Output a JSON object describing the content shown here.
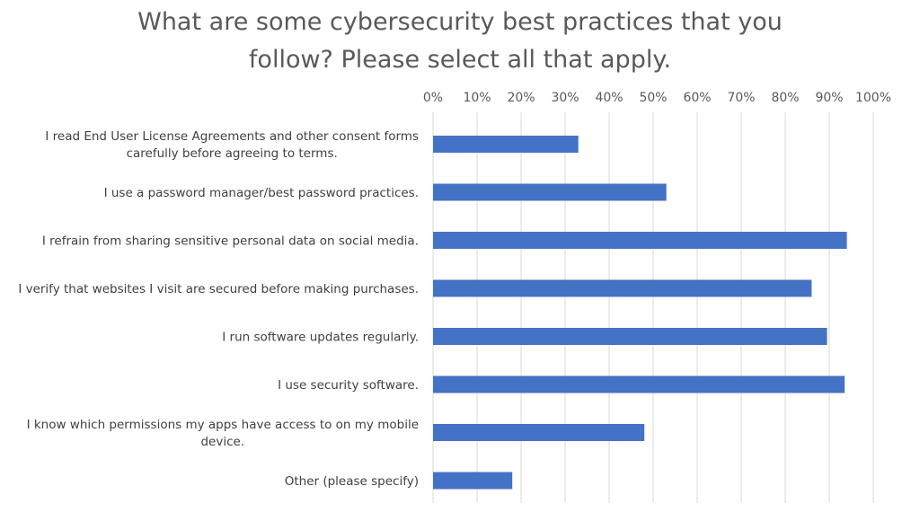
{
  "chart_data": {
    "type": "bar",
    "orientation": "horizontal",
    "title_lines": [
      "What are some cybersecurity best practices that you",
      "follow? Please select all that apply."
    ],
    "categories": [
      [
        "I read End User License Agreements and other consent forms",
        "carefully before agreeing to terms."
      ],
      [
        "I use a password manager/best password practices."
      ],
      [
        "I refrain from sharing sensitive personal data on social media."
      ],
      [
        "I verify that websites I visit are secured before making purchases."
      ],
      [
        "I run software updates regularly."
      ],
      [
        "I use security software."
      ],
      [
        "I know which permissions my apps have access to on my mobile",
        "device."
      ],
      [
        "Other (please specify)"
      ]
    ],
    "values": [
      33,
      53,
      94,
      86,
      89.5,
      93.5,
      48,
      18
    ],
    "unit": "%",
    "xlim": [
      0,
      100
    ],
    "xticks": [
      "0%",
      "10%",
      "20%",
      "30%",
      "40%",
      "50%",
      "60%",
      "70%",
      "80%",
      "90%",
      "100%"
    ],
    "grid": true,
    "axis_position": "top",
    "legend": "none",
    "bar_color": "#4472c4"
  }
}
